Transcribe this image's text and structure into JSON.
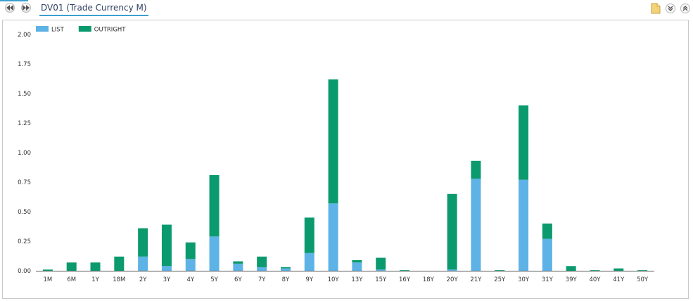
{
  "toolbar": {
    "title": "DV01 (Trade Currency M)",
    "prev_icon": "rewind-icon",
    "next_icon": "fast-forward-icon",
    "export_icon": "document-export-icon",
    "collapse_icon": "double-chevron-down-icon",
    "expand_icon": "double-chevron-up-icon"
  },
  "chart_data": {
    "type": "bar",
    "stacked": true,
    "categories": [
      "1M",
      "6M",
      "1Y",
      "18M",
      "2Y",
      "3Y",
      "4Y",
      "5Y",
      "6Y",
      "7Y",
      "8Y",
      "9Y",
      "10Y",
      "13Y",
      "15Y",
      "16Y",
      "18Y",
      "20Y",
      "21Y",
      "25Y",
      "30Y",
      "31Y",
      "39Y",
      "40Y",
      "41Y",
      "50Y"
    ],
    "series": [
      {
        "name": "LIST",
        "color": "#5db2e6",
        "values": [
          0,
          0,
          0,
          0,
          0.12,
          0.04,
          0.1,
          0.29,
          0.06,
          0.03,
          0.02,
          0.15,
          0.57,
          0.07,
          0.01,
          0,
          0,
          0.01,
          0.78,
          0,
          0.77,
          0.27,
          0,
          0,
          0,
          0
        ]
      },
      {
        "name": "OUTRIGHT",
        "color": "#0b9a6d",
        "values": [
          0.01,
          0.07,
          0.07,
          0.12,
          0.24,
          0.35,
          0.14,
          0.52,
          0.02,
          0.09,
          0.01,
          0.3,
          1.05,
          0.02,
          0.1,
          0.005,
          0,
          0.64,
          0.15,
          0.005,
          0.63,
          0.13,
          0.04,
          0.005,
          0.02,
          0.005
        ]
      }
    ],
    "yticks": [
      "0.00",
      "0.25",
      "0.50",
      "0.75",
      "1.00",
      "1.25",
      "1.50",
      "1.75",
      "2.00"
    ],
    "ylim": [
      0,
      2.0
    ],
    "grid": false,
    "legend": "top-left"
  }
}
